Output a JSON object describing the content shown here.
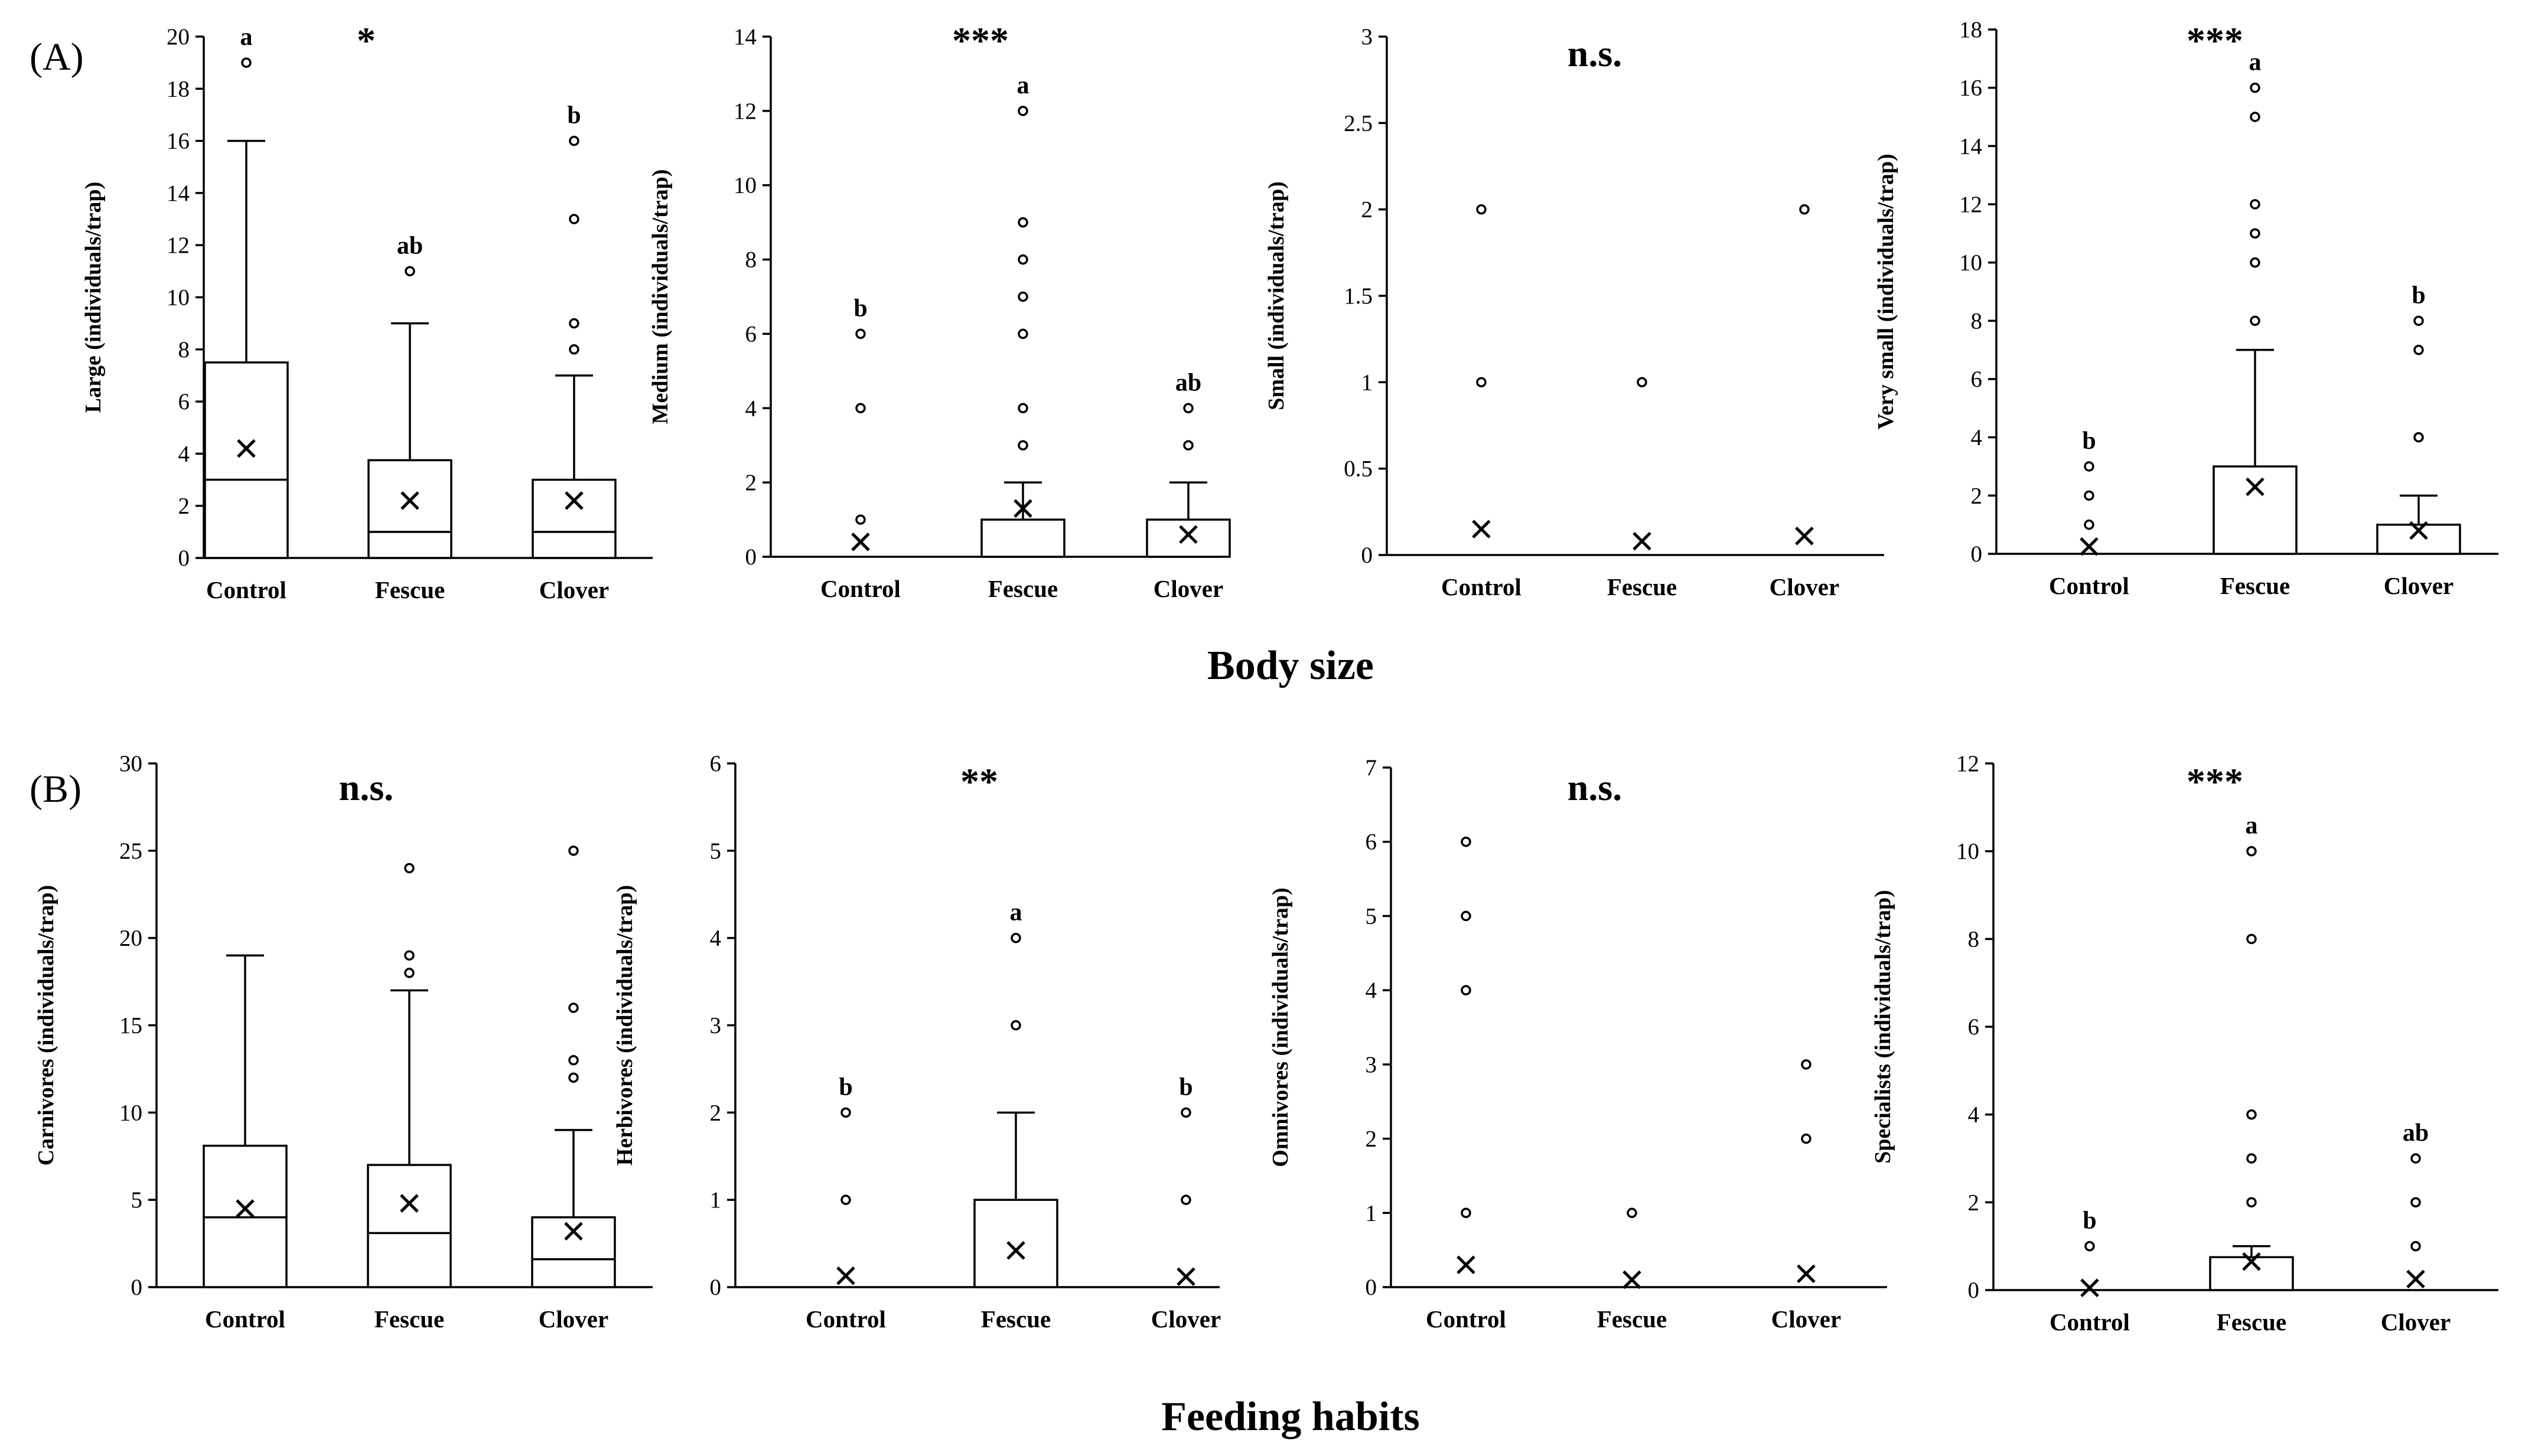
{
  "panel_labels": [
    "(A)",
    "(B)"
  ],
  "group_titles": [
    "Body size",
    "Feeding habits"
  ],
  "chart_data": [
    {
      "type": "box",
      "panel": "A",
      "ylabel": "Large (individuals/trap)",
      "ylim": [
        0,
        20
      ],
      "yticks": [
        0,
        2,
        4,
        6,
        8,
        10,
        12,
        14,
        16,
        18,
        20
      ],
      "categories": [
        "Control",
        "Fescue",
        "Clover"
      ],
      "significance": "*",
      "boxes": [
        {
          "q1": 0,
          "median": 3,
          "q3": 7.5,
          "whisker_low": 0,
          "whisker_high": 16,
          "mean": 4.2,
          "outliers": [
            19
          ],
          "letter": "a"
        },
        {
          "q1": 0,
          "median": 1,
          "q3": 3.75,
          "whisker_low": 0,
          "whisker_high": 9,
          "mean": 2.2,
          "outliers": [
            11
          ],
          "letter": "ab"
        },
        {
          "q1": 0,
          "median": 1,
          "q3": 3,
          "whisker_low": 0,
          "whisker_high": 7,
          "mean": 2.2,
          "outliers": [
            8,
            9,
            13,
            16
          ],
          "letter": "b"
        }
      ]
    },
    {
      "type": "box",
      "panel": "A",
      "ylabel": "Medium (individuals/trap)",
      "ylim": [
        0,
        14
      ],
      "yticks": [
        0,
        2,
        4,
        6,
        8,
        10,
        12,
        14
      ],
      "categories": [
        "Control",
        "Fescue",
        "Clover"
      ],
      "significance": "***",
      "boxes": [
        {
          "q1": 0,
          "median": 0,
          "q3": 0,
          "whisker_low": 0,
          "whisker_high": 0,
          "mean": 0.4,
          "outliers": [
            1,
            4,
            6
          ],
          "letter": "b"
        },
        {
          "q1": 0,
          "median": 0,
          "q3": 1,
          "whisker_low": 0,
          "whisker_high": 2,
          "mean": 1.3,
          "outliers": [
            3,
            4,
            6,
            7,
            8,
            9,
            12
          ],
          "letter": "a"
        },
        {
          "q1": 0,
          "median": 0,
          "q3": 1,
          "whisker_low": 0,
          "whisker_high": 2,
          "mean": 0.6,
          "outliers": [
            3,
            4
          ],
          "letter": "ab"
        }
      ]
    },
    {
      "type": "box",
      "panel": "A",
      "ylabel": "Small (individuals/trap)",
      "ylim": [
        0,
        3
      ],
      "yticks": [
        0,
        0.5,
        1,
        1.5,
        2,
        2.5,
        3
      ],
      "categories": [
        "Control",
        "Fescue",
        "Clover"
      ],
      "significance": "n.s.",
      "boxes": [
        {
          "q1": 0,
          "median": 0,
          "q3": 0,
          "whisker_low": 0,
          "whisker_high": 0,
          "mean": 0.15,
          "outliers": [
            1,
            2
          ],
          "letter": ""
        },
        {
          "q1": 0,
          "median": 0,
          "q3": 0,
          "whisker_low": 0,
          "whisker_high": 0,
          "mean": 0.08,
          "outliers": [
            1
          ],
          "letter": ""
        },
        {
          "q1": 0,
          "median": 0,
          "q3": 0,
          "whisker_low": 0,
          "whisker_high": 0,
          "mean": 0.11,
          "outliers": [
            2
          ],
          "letter": ""
        }
      ]
    },
    {
      "type": "box",
      "panel": "A",
      "ylabel": "Very small (individuals/trap)",
      "ylim": [
        0,
        18
      ],
      "yticks": [
        0,
        2,
        4,
        6,
        8,
        10,
        12,
        14,
        16,
        18
      ],
      "categories": [
        "Control",
        "Fescue",
        "Clover"
      ],
      "significance": "***",
      "boxes": [
        {
          "q1": 0,
          "median": 0,
          "q3": 0,
          "whisker_low": 0,
          "whisker_high": 0,
          "mean": 0.25,
          "outliers": [
            1,
            2,
            3
          ],
          "letter": "b"
        },
        {
          "q1": 0,
          "median": 0,
          "q3": 3,
          "whisker_low": 0,
          "whisker_high": 7,
          "mean": 2.3,
          "outliers": [
            8,
            10,
            11,
            12,
            15,
            16
          ],
          "letter": "a"
        },
        {
          "q1": 0,
          "median": 0,
          "q3": 1,
          "whisker_low": 0,
          "whisker_high": 2,
          "mean": 0.8,
          "outliers": [
            4,
            7,
            8
          ],
          "letter": "b"
        }
      ]
    },
    {
      "type": "box",
      "panel": "B",
      "ylabel": "Carnivores (individuals/trap)",
      "ylim": [
        0,
        30
      ],
      "yticks": [
        0,
        5,
        10,
        15,
        20,
        25,
        30
      ],
      "categories": [
        "Control",
        "Fescue",
        "Clover"
      ],
      "significance": "n.s.",
      "boxes": [
        {
          "q1": 0,
          "median": 4,
          "q3": 8.1,
          "whisker_low": 0,
          "whisker_high": 19,
          "mean": 4.5,
          "outliers": [],
          "letter": ""
        },
        {
          "q1": 0,
          "median": 3.1,
          "q3": 7,
          "whisker_low": 0,
          "whisker_high": 17,
          "mean": 4.8,
          "outliers": [
            18,
            19,
            24
          ],
          "letter": ""
        },
        {
          "q1": 0,
          "median": 1.6,
          "q3": 4,
          "whisker_low": 0,
          "whisker_high": 9,
          "mean": 3.2,
          "outliers": [
            12,
            13,
            16,
            25
          ],
          "letter": ""
        }
      ]
    },
    {
      "type": "box",
      "panel": "B",
      "ylabel": "Herbivores (individuals/trap)",
      "ylim": [
        0,
        6
      ],
      "yticks": [
        0,
        1,
        2,
        3,
        4,
        5,
        6
      ],
      "categories": [
        "Control",
        "Fescue",
        "Clover"
      ],
      "significance": "**",
      "boxes": [
        {
          "q1": 0,
          "median": 0,
          "q3": 0,
          "whisker_low": 0,
          "whisker_high": 0,
          "mean": 0.13,
          "outliers": [
            1,
            2
          ],
          "letter": "b"
        },
        {
          "q1": 0,
          "median": 0,
          "q3": 1,
          "whisker_low": 0,
          "whisker_high": 2,
          "mean": 0.42,
          "outliers": [
            3,
            4
          ],
          "letter": "a"
        },
        {
          "q1": 0,
          "median": 0,
          "q3": 0,
          "whisker_low": 0,
          "whisker_high": 0,
          "mean": 0.12,
          "outliers": [
            1,
            2
          ],
          "letter": "b"
        }
      ]
    },
    {
      "type": "box",
      "panel": "B",
      "ylabel": "Omnivores (individuals/trap)",
      "ylim": [
        0,
        7
      ],
      "yticks": [
        0,
        1,
        2,
        3,
        4,
        5,
        6,
        7
      ],
      "categories": [
        "Control",
        "Fescue",
        "Clover"
      ],
      "significance": "n.s.",
      "boxes": [
        {
          "q1": 0,
          "median": 0,
          "q3": 0,
          "whisker_low": 0,
          "whisker_high": 0,
          "mean": 0.3,
          "outliers": [
            1,
            4,
            5,
            6
          ],
          "letter": ""
        },
        {
          "q1": 0,
          "median": 0,
          "q3": 0,
          "whisker_low": 0,
          "whisker_high": 0,
          "mean": 0.1,
          "outliers": [
            1
          ],
          "letter": ""
        },
        {
          "q1": 0,
          "median": 0,
          "q3": 0,
          "whisker_low": 0,
          "whisker_high": 0,
          "mean": 0.18,
          "outliers": [
            2,
            3
          ],
          "letter": ""
        }
      ]
    },
    {
      "type": "box",
      "panel": "B",
      "ylabel": "Specialists (individuals/trap)",
      "ylim": [
        0,
        12
      ],
      "yticks": [
        0,
        2,
        4,
        6,
        8,
        10,
        12
      ],
      "categories": [
        "Control",
        "Fescue",
        "Clover"
      ],
      "significance": "***",
      "boxes": [
        {
          "q1": 0,
          "median": 0,
          "q3": 0,
          "whisker_low": 0,
          "whisker_high": 0,
          "mean": 0.05,
          "outliers": [
            1
          ],
          "letter": "b"
        },
        {
          "q1": 0,
          "median": 0,
          "q3": 0.75,
          "whisker_low": 0,
          "whisker_high": 1,
          "mean": 0.65,
          "outliers": [
            2,
            3,
            4,
            8,
            10
          ],
          "letter": "a"
        },
        {
          "q1": 0,
          "median": 0,
          "q3": 0,
          "whisker_low": 0,
          "whisker_high": 0,
          "mean": 0.25,
          "outliers": [
            1,
            2,
            3
          ],
          "letter": "ab"
        }
      ]
    }
  ]
}
